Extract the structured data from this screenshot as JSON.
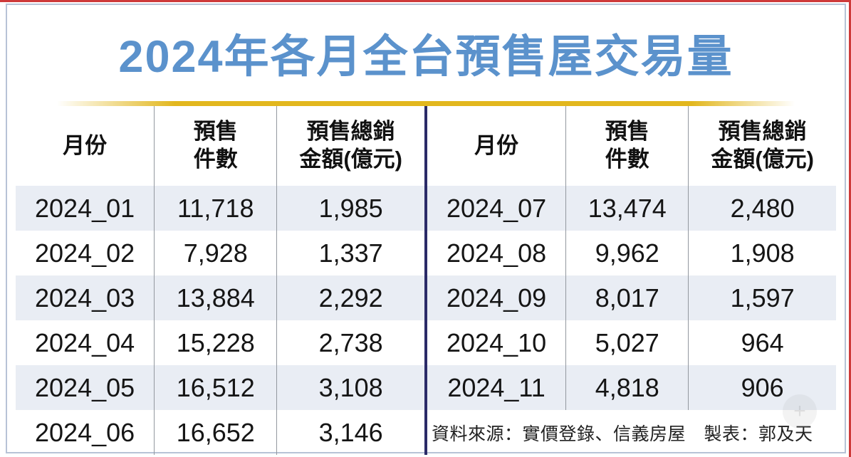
{
  "page": {
    "title": "2024年各月全台預售屋交易量"
  },
  "table": {
    "headers": {
      "month": "月份",
      "count_line1": "預售",
      "count_line2": "件數",
      "amount_line1": "預售總銷",
      "amount_line2": "金額(億元)"
    },
    "left_rows": [
      [
        "2024_01",
        "11,718",
        "1,985"
      ],
      [
        "2024_02",
        "7,928",
        "1,337"
      ],
      [
        "2024_03",
        "13,884",
        "2,292"
      ],
      [
        "2024_04",
        "15,228",
        "2,738"
      ],
      [
        "2024_05",
        "16,512",
        "3,108"
      ],
      [
        "2024_06",
        "16,652",
        "3,146"
      ]
    ],
    "right_rows": [
      [
        "2024_07",
        "13,474",
        "2,480"
      ],
      [
        "2024_08",
        "9,962",
        "1,908"
      ],
      [
        "2024_09",
        "8,017",
        "1,597"
      ],
      [
        "2024_10",
        "5,027",
        "964"
      ],
      [
        "2024_11",
        "4,818",
        "906"
      ]
    ]
  },
  "footer": {
    "text": "資料來源：實價登錄、信義房屋　製表：郭及天"
  },
  "colors": {
    "title_blue": "#5b92cc",
    "accent_yellow": "#e2b71e",
    "divider_navy": "#2b2b68",
    "row_shade": "#e9edf4",
    "frame_border": "#b7c3d6",
    "outer_red": "#ce3a3a"
  },
  "chart_data": {
    "type": "table",
    "title": "2024年各月全台預售屋交易量",
    "columns": [
      "月份",
      "預售件數",
      "預售總銷金額(億元)"
    ],
    "rows": [
      [
        "2024_01",
        11718,
        1985
      ],
      [
        "2024_02",
        7928,
        1337
      ],
      [
        "2024_03",
        13884,
        2292
      ],
      [
        "2024_04",
        15228,
        2738
      ],
      [
        "2024_05",
        16512,
        3108
      ],
      [
        "2024_06",
        16652,
        3146
      ],
      [
        "2024_07",
        13474,
        2480
      ],
      [
        "2024_08",
        9962,
        1908
      ],
      [
        "2024_09",
        8017,
        1597
      ],
      [
        "2024_10",
        5027,
        964
      ],
      [
        "2024_11",
        4818,
        906
      ]
    ],
    "source": "資料來源：實價登錄、信義房屋",
    "credit": "製表：郭及天"
  }
}
